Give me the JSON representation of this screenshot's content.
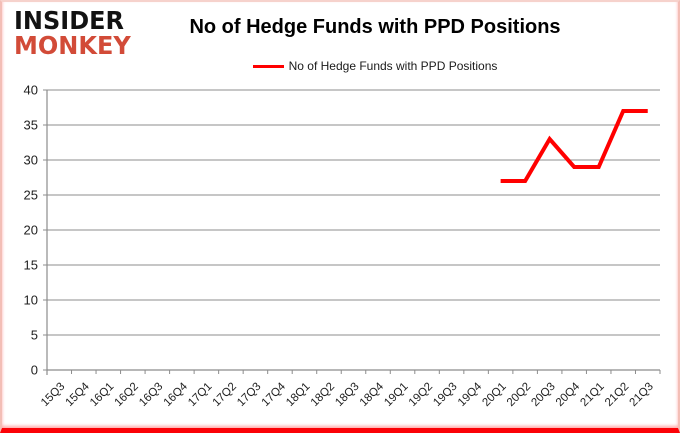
{
  "header": {
    "logo": {
      "line1": "INSIDER",
      "line2": "MONKEY"
    },
    "title": "No of Hedge Funds with PPD Positions",
    "legend": {
      "label": "No of Hedge Funds with PPD Positions",
      "color": "#ff0000"
    }
  },
  "chart_data": {
    "type": "line",
    "title": "No of Hedge Funds with PPD Positions",
    "categories": [
      "15Q3",
      "15Q4",
      "16Q1",
      "16Q2",
      "16Q3",
      "16Q4",
      "17Q1",
      "17Q2",
      "17Q3",
      "17Q4",
      "18Q1",
      "18Q2",
      "18Q3",
      "18Q4",
      "19Q1",
      "19Q2",
      "19Q3",
      "19Q4",
      "20Q1",
      "20Q2",
      "20Q3",
      "20Q4",
      "21Q1",
      "21Q2",
      "21Q3"
    ],
    "series": [
      {
        "name": "No of Hedge Funds with PPD Positions",
        "color": "#ff0000",
        "values": [
          null,
          null,
          null,
          null,
          null,
          null,
          null,
          null,
          null,
          null,
          null,
          null,
          null,
          null,
          null,
          null,
          null,
          null,
          27,
          27,
          33,
          29,
          29,
          37,
          37
        ]
      }
    ],
    "xlabel": "",
    "ylabel": "",
    "ylim": [
      0,
      40
    ],
    "ytick_step": 5,
    "grid": true,
    "legend_position": "top"
  },
  "colors": {
    "grid": "#8c8c8c",
    "axis": "#8c8c8c",
    "axis_text": "#1f1f1f",
    "line": "#ff0000",
    "logo_black": "#121212",
    "logo_red": "#d24b38",
    "border_pink": "#f3beb6",
    "border_red": "#fb0207"
  }
}
